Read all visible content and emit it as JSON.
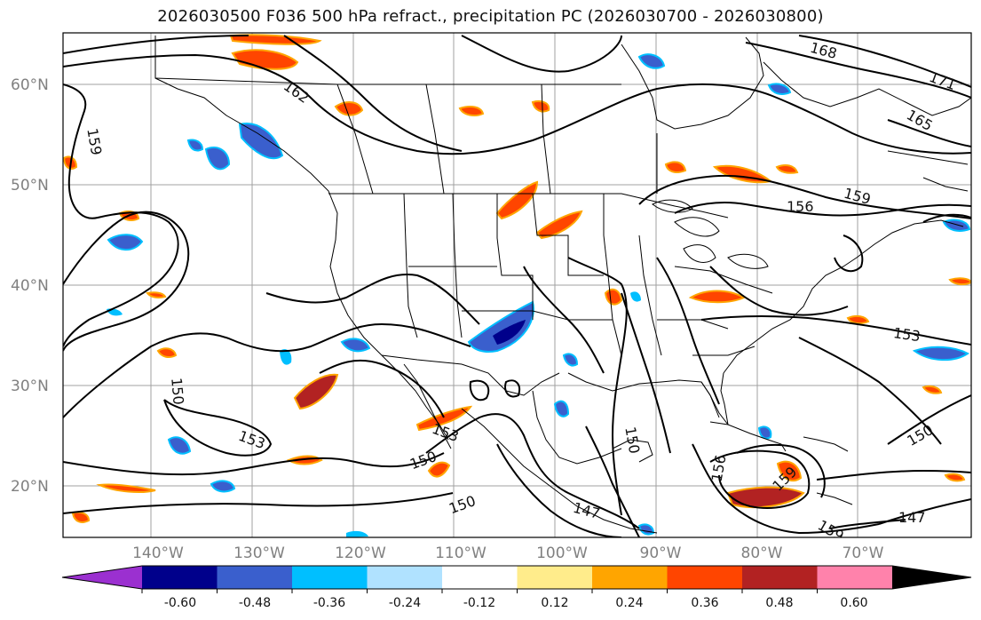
{
  "title": "2026030500 F036 500 hPa refract., precipitation PC (2026030700 - 2026030800)",
  "map": {
    "lat_labels": [
      "60°N",
      "50°N",
      "40°N",
      "30°N",
      "20°N"
    ],
    "lon_labels": [
      "140°W",
      "130°W",
      "120°W",
      "110°W",
      "100°W",
      "90°W",
      "80°W",
      "70°W"
    ],
    "contour_labels": [
      "162",
      "159",
      "168",
      "171",
      "165",
      "156",
      "159",
      "153",
      "150",
      "153",
      "150",
      "150",
      "147",
      "150",
      "147",
      "150",
      "156",
      "159",
      "153",
      "159"
    ]
  },
  "colorbar": {
    "ticks": [
      "-0.60",
      "-0.48",
      "-0.36",
      "-0.24",
      "-0.12",
      "0.12",
      "0.24",
      "0.36",
      "0.48",
      "0.60"
    ],
    "colors": [
      "#9b30d0",
      "#00008b",
      "#3a5fcd",
      "#00bfff",
      "#b0e2ff",
      "#ffffff",
      "#ffec8b",
      "#ffa500",
      "#ff4500",
      "#b22222",
      "#ff82ab"
    ]
  },
  "colors": {
    "contour": "#000000",
    "grid": "#a0a0a0",
    "axis_label": "#808080"
  }
}
